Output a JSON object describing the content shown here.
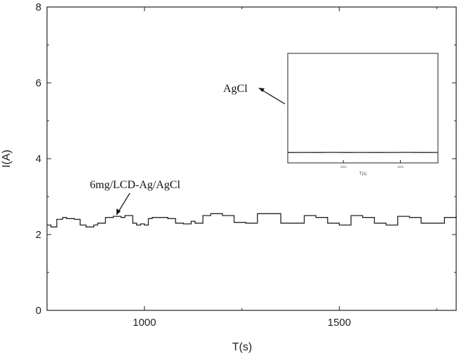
{
  "chart_data": {
    "type": "line",
    "title": "",
    "xlabel": "T(s)",
    "ylabel": "I(A)",
    "xlim": [
      750,
      1800
    ],
    "ylim": [
      0,
      8
    ],
    "xticks": [
      1000,
      1500
    ],
    "yticks": [
      0,
      2,
      4,
      6,
      8
    ],
    "grid": false,
    "series": [
      {
        "label": "6mg/LCD-Ag/AgCl",
        "x": [
          750,
          760,
          775,
          790,
          800,
          820,
          835,
          850,
          870,
          880,
          900,
          920,
          940,
          950,
          970,
          980,
          990,
          1000,
          1010,
          1020,
          1040,
          1060,
          1080,
          1100,
          1120,
          1130,
          1150,
          1170,
          1200,
          1230,
          1260,
          1290,
          1320,
          1350,
          1380,
          1410,
          1440,
          1470,
          1500,
          1530,
          1560,
          1590,
          1620,
          1650,
          1680,
          1710,
          1740,
          1770,
          1800
        ],
        "y": [
          2.25,
          2.2,
          2.4,
          2.45,
          2.42,
          2.4,
          2.25,
          2.2,
          2.25,
          2.3,
          2.45,
          2.48,
          2.45,
          2.5,
          2.3,
          2.25,
          2.28,
          2.25,
          2.42,
          2.45,
          2.45,
          2.42,
          2.3,
          2.28,
          2.35,
          2.3,
          2.5,
          2.55,
          2.5,
          2.32,
          2.3,
          2.55,
          2.55,
          2.3,
          2.3,
          2.5,
          2.45,
          2.3,
          2.25,
          2.5,
          2.45,
          2.3,
          2.25,
          2.48,
          2.45,
          2.3,
          2.3,
          2.45,
          2.5
        ]
      }
    ],
    "annotations": [
      {
        "text": "6mg/LCD-Ag/AgCl",
        "points_to": "main-series"
      },
      {
        "text": "AgCl",
        "points_to": "inset-series"
      }
    ],
    "inset": {
      "xlabel": "T(s)",
      "xticks_labels": [
        "1000",
        "1500"
      ],
      "series": [
        {
          "label": "AgCl",
          "x": [
            0,
            0.1,
            0.2,
            0.3,
            0.4,
            0.5,
            0.6,
            0.7,
            0.8,
            0.9,
            1.0
          ],
          "y": [
            0.08,
            0.09,
            0.08,
            0.1,
            0.08,
            0.09,
            0.08,
            0.09,
            0.1,
            0.08,
            0.09
          ]
        }
      ]
    }
  }
}
